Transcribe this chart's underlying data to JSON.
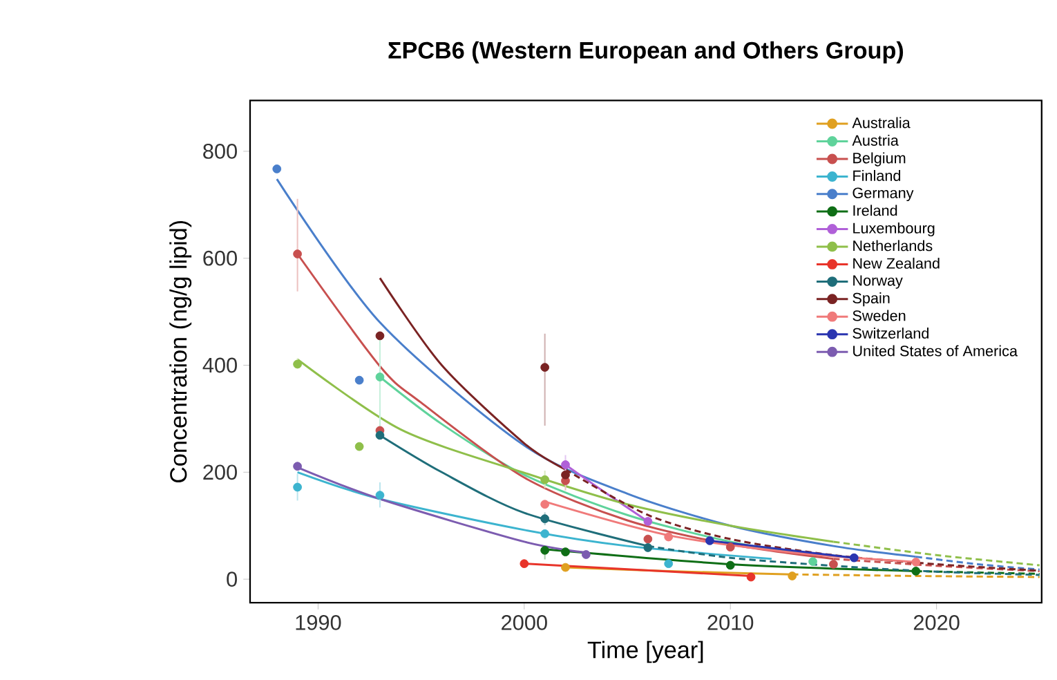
{
  "chart_data": {
    "type": "scatter",
    "title": "ΣPCB6 (Western European and Others Group)",
    "xlabel": "Time [year]",
    "ylabel": "Concentration (ng/g lipid)",
    "xlim": [
      1986.7,
      2025.1
    ],
    "ylim": [
      -44,
      895
    ],
    "xticks": [
      1990,
      2000,
      2010,
      2020
    ],
    "yticks": [
      0,
      200,
      400,
      600,
      800
    ],
    "marker": "circle",
    "legend": "top right",
    "series": [
      {
        "name": "Australia",
        "color": "#e0a020",
        "x": [
          2002,
          2013
        ],
        "values": [
          22,
          6
        ]
      },
      {
        "name": "Austria",
        "color": "#5fd39b",
        "x": [
          1993,
          2014
        ],
        "values": [
          378,
          33
        ],
        "errors": [
          [
            281,
            453
          ],
          null
        ]
      },
      {
        "name": "Belgium",
        "color": "#c8504f",
        "x": [
          1989,
          1993,
          2002,
          2006,
          2010,
          2015
        ],
        "values": [
          608,
          278,
          184,
          75,
          60,
          28
        ],
        "errors": [
          [
            538,
            711
          ],
          null,
          [
            166,
            200
          ],
          null,
          null,
          null
        ]
      },
      {
        "name": "Finland",
        "color": "#3cb4cf",
        "x": [
          1989,
          1993,
          2001,
          2007
        ],
        "values": [
          172,
          157,
          85,
          29
        ],
        "errors": [
          [
            147,
            197
          ],
          [
            134,
            181
          ],
          null,
          null
        ]
      },
      {
        "name": "Germany",
        "color": "#4a7fcb",
        "x": [
          1988,
          1992
        ],
        "values": [
          767,
          372
        ]
      },
      {
        "name": "Ireland",
        "color": "#0f6e16",
        "x": [
          2001,
          2002,
          2010,
          2019
        ],
        "values": [
          54,
          51,
          26,
          15
        ],
        "errors": [
          [
            37,
            61
          ],
          null,
          null,
          null
        ]
      },
      {
        "name": "Luxembourg",
        "color": "#b060d8",
        "x": [
          2002,
          2006
        ],
        "values": [
          214,
          108
        ],
        "errors": [
          [
            196,
            232
          ],
          null
        ]
      },
      {
        "name": "Netherlands",
        "color": "#8fbf4a",
        "x": [
          1989,
          1992,
          2001
        ],
        "values": [
          402,
          248,
          186
        ],
        "errors": [
          [
            394,
            413
          ],
          null,
          [
            170,
            203
          ]
        ]
      },
      {
        "name": "New Zealand",
        "color": "#e8342a",
        "x": [
          2000,
          2011
        ],
        "values": [
          29,
          4
        ]
      },
      {
        "name": "Norway",
        "color": "#1f6e7a",
        "x": [
          1993,
          2001,
          2006
        ],
        "values": [
          269,
          113,
          59
        ],
        "errors": [
          null,
          [
            101,
            125
          ],
          null
        ]
      },
      {
        "name": "Spain",
        "color": "#7a2323",
        "x": [
          1993,
          2001,
          2002
        ],
        "values": [
          455,
          396,
          195
        ],
        "errors": [
          null,
          [
            287,
            459
          ],
          null
        ]
      },
      {
        "name": "Sweden",
        "color": "#f07a7a",
        "x": [
          2001,
          2007,
          2019
        ],
        "values": [
          140,
          79,
          32
        ]
      },
      {
        "name": "Switzerland",
        "color": "#2a35b0",
        "x": [
          2009,
          2016
        ],
        "values": [
          72,
          40
        ]
      },
      {
        "name": "United States of America",
        "color": "#7c5cb0",
        "x": [
          1989,
          2003
        ],
        "values": [
          211,
          46
        ],
        "errors": [
          [
            203,
            219
          ],
          null
        ]
      },
      {
        "type": "line",
        "marker": "none",
        "color": "#e0a020",
        "line_style": "solid",
        "x": [
          2002,
          2007,
          2013
        ],
        "values": [
          22,
          15,
          9
        ]
      },
      {
        "type": "line",
        "marker": "none",
        "color": "#e0a020",
        "line_style": "dashed",
        "x": [
          2013,
          2019,
          2025
        ],
        "values": [
          9,
          6,
          4
        ]
      },
      {
        "type": "line",
        "marker": "none",
        "color": "#5fd39b",
        "line_style": "solid",
        "x": [
          1993,
          1996,
          2000,
          2005,
          2010,
          2014
        ],
        "values": [
          378,
          290,
          195,
          120,
          70,
          45
        ]
      },
      {
        "type": "line",
        "marker": "none",
        "color": "#c8504f",
        "line_style": "solid",
        "x": [
          1989,
          1993,
          1995,
          2000,
          2005,
          2010,
          2015
        ],
        "values": [
          608,
          398,
          330,
          190,
          110,
          65,
          38
        ]
      },
      {
        "type": "line",
        "marker": "none",
        "color": "#c8504f",
        "line_style": "dashed",
        "x": [
          2015,
          2020,
          2025
        ],
        "values": [
          38,
          25,
          15
        ]
      },
      {
        "type": "line",
        "marker": "none",
        "color": "#3cb4cf",
        "line_style": "solid",
        "x": [
          1989,
          1993,
          2000,
          2005,
          2012
        ],
        "values": [
          200,
          150,
          92,
          62,
          38
        ]
      },
      {
        "type": "line",
        "marker": "none",
        "color": "#4a7fcb",
        "line_style": "solid",
        "x": [
          1988,
          1993,
          2000,
          2005,
          2010,
          2015,
          2019
        ],
        "values": [
          748,
          480,
          250,
          160,
          100,
          62,
          42
        ]
      },
      {
        "type": "line",
        "marker": "none",
        "color": "#4a7fcb",
        "line_style": "dashed",
        "x": [
          2019,
          2022,
          2025
        ],
        "values": [
          42,
          28,
          18
        ]
      },
      {
        "type": "line",
        "marker": "none",
        "color": "#0f6e16",
        "line_style": "solid",
        "x": [
          2001,
          2010,
          2019
        ],
        "values": [
          56,
          28,
          15
        ]
      },
      {
        "type": "line",
        "marker": "none",
        "color": "#0f6e16",
        "line_style": "dashed",
        "x": [
          2019,
          2025
        ],
        "values": [
          15,
          10
        ]
      },
      {
        "type": "line",
        "marker": "none",
        "color": "#b060d8",
        "line_style": "solid",
        "x": [
          2002,
          2004,
          2006
        ],
        "values": [
          214,
          160,
          108
        ]
      },
      {
        "type": "line",
        "marker": "none",
        "color": "#8fbf4a",
        "line_style": "solid",
        "x": [
          1989,
          1994,
          2000,
          2005,
          2010,
          2015
        ],
        "values": [
          411,
          280,
          199,
          140,
          100,
          70
        ]
      },
      {
        "type": "line",
        "marker": "none",
        "color": "#8fbf4a",
        "line_style": "dashed",
        "x": [
          2015,
          2020,
          2025
        ],
        "values": [
          70,
          45,
          26
        ]
      },
      {
        "type": "line",
        "marker": "none",
        "color": "#e8342a",
        "line_style": "solid",
        "x": [
          2000,
          2011
        ],
        "values": [
          29,
          6
        ]
      },
      {
        "type": "line",
        "marker": "none",
        "color": "#1f6e7a",
        "line_style": "solid",
        "x": [
          1993,
          1996,
          2000,
          2006
        ],
        "values": [
          269,
          200,
          124,
          62
        ]
      },
      {
        "type": "line",
        "marker": "none",
        "color": "#1f6e7a",
        "line_style": "dashed",
        "x": [
          2006,
          2010,
          2015,
          2020,
          2025
        ],
        "values": [
          62,
          40,
          25,
          14,
          8
        ]
      },
      {
        "type": "line",
        "marker": "none",
        "color": "#7a2323",
        "line_style": "solid",
        "x": [
          1993,
          1996,
          2000,
          2002
        ],
        "values": [
          563,
          400,
          254,
          205
        ]
      },
      {
        "type": "line",
        "marker": "none",
        "color": "#7a2323",
        "line_style": "dashed",
        "x": [
          2002,
          2006,
          2010,
          2015,
          2020,
          2025
        ],
        "values": [
          205,
          120,
          75,
          45,
          28,
          16
        ]
      },
      {
        "type": "line",
        "marker": "none",
        "color": "#f07a7a",
        "line_style": "solid",
        "x": [
          2001,
          2007,
          2013,
          2019
        ],
        "values": [
          145,
          82,
          50,
          32
        ]
      },
      {
        "type": "line",
        "marker": "none",
        "color": "#2a35b0",
        "line_style": "solid",
        "x": [
          2009,
          2016
        ],
        "values": [
          72,
          40
        ]
      },
      {
        "type": "line",
        "marker": "none",
        "color": "#7c5cb0",
        "line_style": "solid",
        "x": [
          1989,
          1993,
          2000,
          2003
        ],
        "values": [
          209,
          150,
          70,
          50
        ]
      }
    ]
  }
}
